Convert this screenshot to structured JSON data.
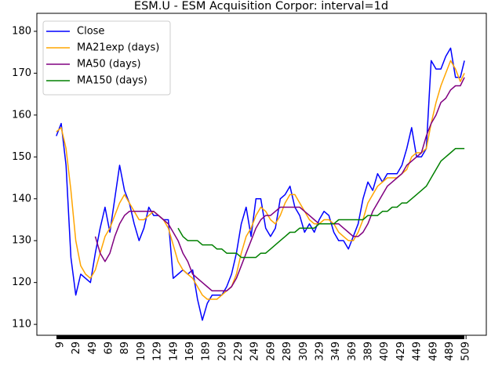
{
  "chart_data": {
    "type": "line",
    "title": "ESM.U - ESM Acquisition Corpor: interval=1d",
    "x": [
      4,
      10,
      16,
      22,
      28,
      34,
      40,
      46,
      52,
      58,
      64,
      70,
      76,
      82,
      88,
      94,
      100,
      106,
      112,
      118,
      124,
      130,
      136,
      142,
      148,
      154,
      160,
      166,
      172,
      178,
      184,
      190,
      196,
      202,
      208,
      214,
      220,
      226,
      232,
      238,
      244,
      250,
      256,
      262,
      268,
      274,
      280,
      286,
      292,
      298,
      304,
      310,
      316,
      322,
      328,
      334,
      340,
      346,
      352,
      358,
      364,
      370,
      376,
      382,
      388,
      394,
      400,
      406,
      412,
      418,
      424,
      430,
      436,
      442,
      448,
      454,
      460,
      466,
      472,
      478,
      484,
      490,
      496,
      502,
      507
    ],
    "series": [
      {
        "name": "Close",
        "color": "#0000ff",
        "values": [
          155,
          158,
          148,
          126,
          117,
          122,
          121,
          120,
          127,
          133,
          138,
          132,
          140,
          148,
          142,
          139,
          134,
          130,
          133,
          138,
          136,
          136,
          135,
          135,
          121,
          122,
          123,
          122,
          123,
          116,
          111,
          115,
          117,
          117,
          117,
          119,
          122,
          127,
          134,
          138,
          131,
          140,
          140,
          133,
          131,
          133,
          140,
          141,
          143,
          138,
          136,
          132,
          134,
          132,
          135,
          137,
          136,
          132,
          130,
          130,
          128,
          131,
          134,
          140,
          144,
          142,
          146,
          144,
          146,
          146,
          146,
          148,
          152,
          157,
          150,
          150,
          152,
          173,
          171,
          171,
          174,
          176,
          169,
          169,
          173
        ]
      },
      {
        "name": "MA21exp (days)",
        "color": "#ffa500",
        "values": [
          156,
          157,
          152,
          142,
          130,
          124,
          122,
          121,
          123,
          127,
          131,
          133,
          136,
          139,
          141,
          139,
          137,
          135,
          135,
          136,
          137,
          136,
          135,
          133,
          129,
          125,
          123,
          122,
          121,
          119,
          117,
          116,
          116,
          116,
          117,
          118,
          119,
          122,
          127,
          131,
          133,
          136,
          138,
          137,
          135,
          134,
          136,
          139,
          141,
          141,
          139,
          137,
          135,
          134,
          134,
          135,
          135,
          134,
          132,
          131,
          130,
          130,
          132,
          135,
          139,
          141,
          143,
          144,
          145,
          145,
          145,
          146,
          147,
          150,
          151,
          151,
          152,
          158,
          163,
          167,
          170,
          173,
          171,
          168,
          170
        ]
      },
      {
        "name": "MA50 (days)",
        "color": "#800080",
        "values": [
          null,
          null,
          null,
          null,
          null,
          null,
          null,
          null,
          131,
          127,
          125,
          127,
          131,
          134,
          136,
          137,
          137,
          137,
          137,
          137,
          137,
          136,
          135,
          134,
          132,
          130,
          127,
          125,
          122,
          121,
          120,
          119,
          118,
          118,
          118,
          118,
          119,
          121,
          124,
          127,
          130,
          133,
          135,
          136,
          136,
          137,
          138,
          138,
          138,
          138,
          138,
          137,
          136,
          135,
          134,
          134,
          134,
          134,
          134,
          133,
          132,
          131,
          131,
          132,
          134,
          137,
          139,
          141,
          143,
          144,
          145,
          146,
          148,
          149,
          150,
          151,
          155,
          158,
          160,
          163,
          164,
          166,
          167,
          167,
          169
        ]
      },
      {
        "name": "MA150 (days)",
        "color": "#008000",
        "values": [
          null,
          null,
          null,
          null,
          null,
          null,
          null,
          null,
          null,
          null,
          null,
          null,
          null,
          null,
          null,
          null,
          null,
          null,
          null,
          null,
          null,
          null,
          null,
          null,
          null,
          133,
          131,
          130,
          130,
          130,
          129,
          129,
          129,
          128,
          128,
          127,
          127,
          127,
          126,
          126,
          126,
          126,
          127,
          127,
          128,
          129,
          130,
          131,
          132,
          132,
          133,
          133,
          133,
          133,
          134,
          134,
          134,
          134,
          135,
          135,
          135,
          135,
          135,
          135,
          136,
          136,
          136,
          137,
          137,
          138,
          138,
          139,
          139,
          140,
          141,
          142,
          143,
          145,
          147,
          149,
          150,
          151,
          152,
          152,
          152
        ]
      }
    ],
    "xlim": [
      -20,
      534
    ],
    "xticks": [
      9,
      29,
      49,
      69,
      89,
      109,
      129,
      149,
      169,
      189,
      209,
      229,
      249,
      269,
      289,
      309,
      329,
      349,
      369,
      389,
      409,
      429,
      449,
      469,
      489,
      509
    ],
    "ylim": [
      107.4,
      184.3
    ],
    "yticks": [
      110,
      120,
      130,
      140,
      150,
      160,
      170,
      180
    ],
    "legend": "upper left"
  }
}
